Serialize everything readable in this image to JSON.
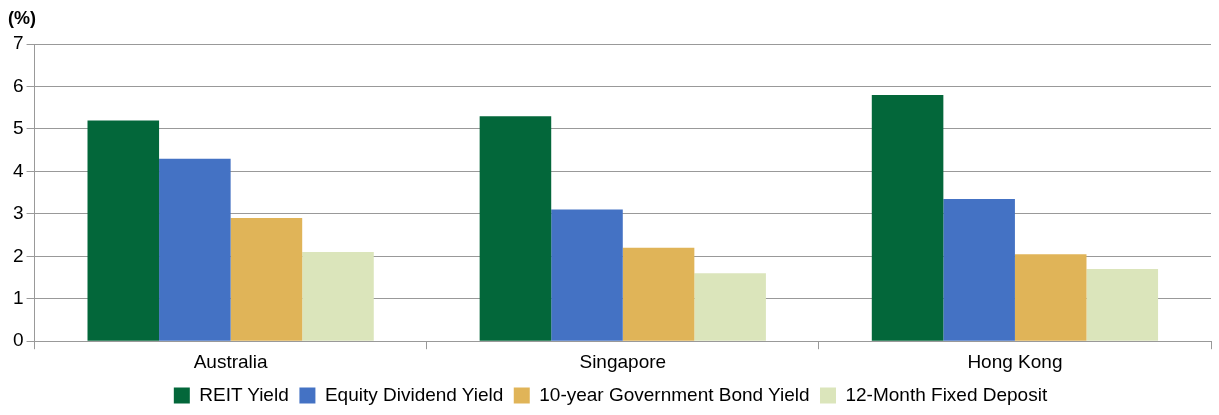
{
  "chart_data": {
    "type": "bar",
    "ylabel": "(%)",
    "categories": [
      "Australia",
      "Singapore",
      "Hong Kong"
    ],
    "series": [
      {
        "name": "REIT Yield",
        "color": "#03673a",
        "values": [
          5.2,
          5.3,
          5.8
        ]
      },
      {
        "name": "Equity Dividend Yield",
        "color": "#4472c4",
        "values": [
          4.3,
          3.1,
          3.35
        ]
      },
      {
        "name": "10-year Government Bond Yield",
        "color": "#e0b458",
        "values": [
          2.9,
          2.2,
          2.05
        ]
      },
      {
        "name": "12-Month Fixed Deposit",
        "color": "#dbe5bb",
        "values": [
          2.1,
          1.6,
          1.7
        ]
      }
    ],
    "ylim": [
      0,
      7
    ],
    "yticks": [
      0,
      1,
      2,
      3,
      4,
      5,
      6,
      7
    ],
    "grid": "y",
    "legend": "bottom"
  }
}
